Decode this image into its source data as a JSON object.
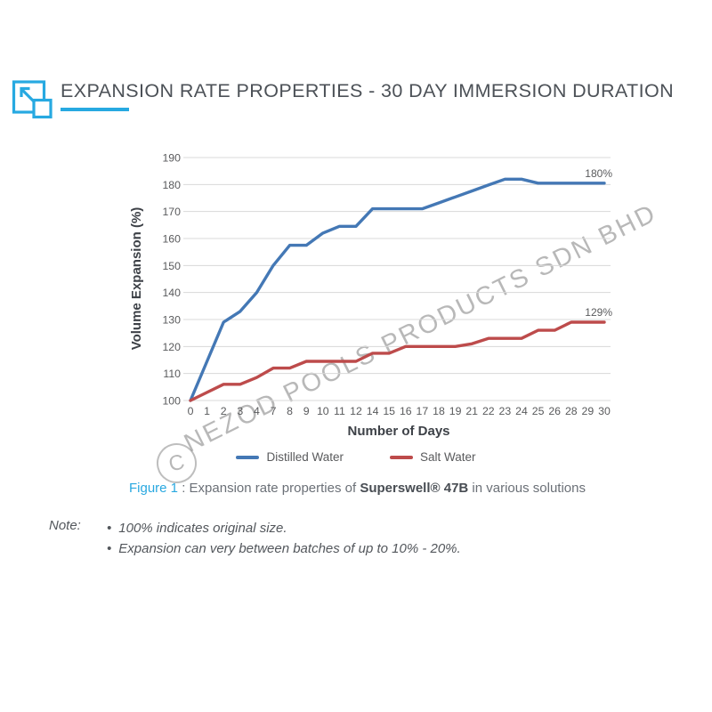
{
  "header": {
    "title": "EXPANSION RATE PROPERTIES - 30 DAY IMMERSION DURATION",
    "accent_color": "#27a9e1",
    "icon": "expand-icon"
  },
  "chart_data": {
    "type": "line",
    "xlabel": "Number of Days",
    "ylabel": "Volume Expansion (%)",
    "ylim": [
      100,
      190
    ],
    "yticks": [
      100,
      110,
      120,
      130,
      140,
      150,
      160,
      170,
      180,
      190
    ],
    "grid": true,
    "legend_position": "bottom-center",
    "x_tick_labels": [
      0,
      1,
      2,
      3,
      4,
      7,
      8,
      9,
      10,
      11,
      12,
      14,
      15,
      16,
      17,
      18,
      19,
      21,
      22,
      23,
      24,
      25,
      26,
      28,
      29,
      30
    ],
    "series": [
      {
        "name": "Distilled Water",
        "color": "#4478b5",
        "end_label": "180%",
        "values": [
          100,
          114.5,
          129,
          133,
          140,
          150,
          157.5,
          157.5,
          162,
          164.5,
          164.5,
          171,
          171,
          171,
          171,
          173.2,
          175.4,
          177.6,
          179.8,
          182,
          182,
          180.5,
          180.5,
          180.5,
          180.5,
          180.5
        ]
      },
      {
        "name": "Salt Water",
        "color": "#bd4b4b",
        "end_label": "129%",
        "values": [
          100,
          103,
          106,
          106,
          108.5,
          112,
          112,
          114.5,
          114.5,
          114.5,
          114.5,
          117.5,
          117.5,
          120,
          120,
          120,
          120,
          121,
          123,
          123,
          123,
          126,
          126,
          129,
          129,
          129
        ]
      }
    ]
  },
  "legend": {
    "items": [
      "Distilled Water",
      "Salt Water"
    ]
  },
  "caption": {
    "figure_label": "Figure 1",
    "mid": " : Expansion rate properties of ",
    "product": "Superswell® 47B",
    "suffix": " in various solutions"
  },
  "notes": {
    "label": "Note:",
    "bullet": "•",
    "items": [
      "100% indicates original size.",
      "Expansion can very between batches of up to 10% - 20%."
    ]
  },
  "watermark": {
    "text": "NEZOD POOLS PRODUCTS SDN BHD",
    "symbol": "C"
  }
}
